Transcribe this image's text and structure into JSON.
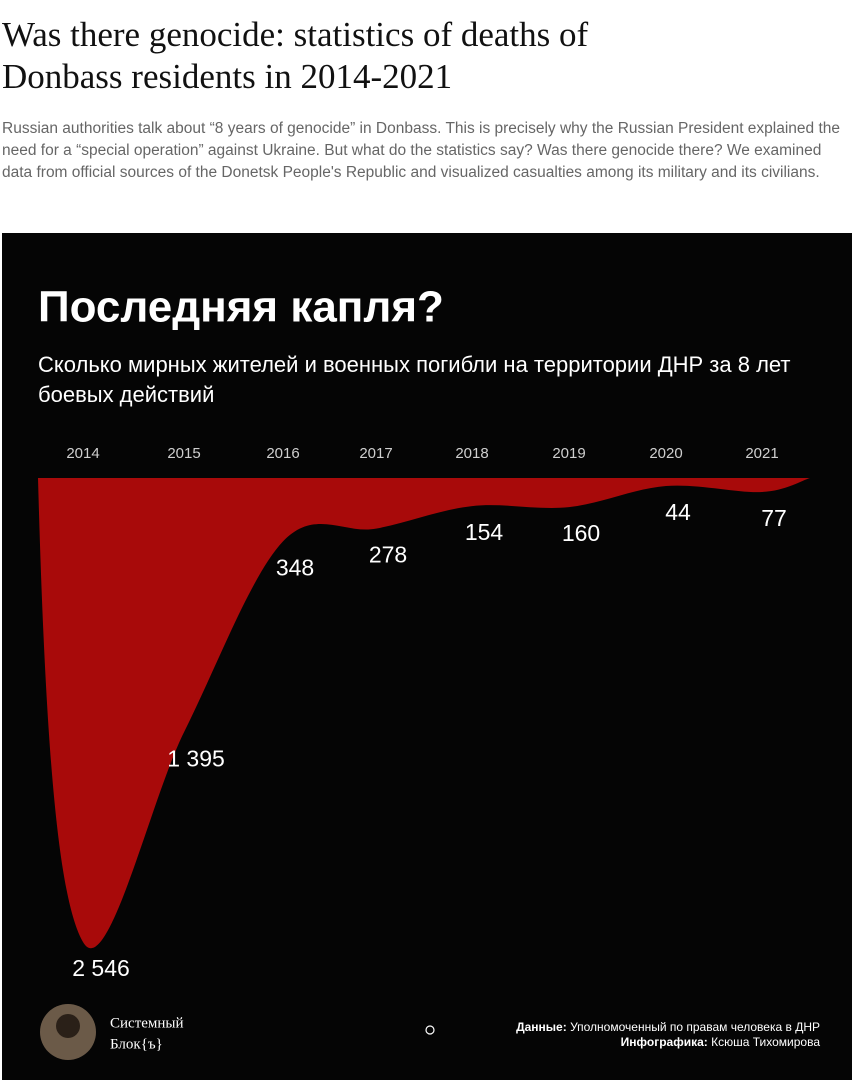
{
  "article": {
    "title": "Was there genocide: statistics of deaths of Donbass residents in 2014-2021",
    "lead": "Russian authorities talk about “8 years of genocide” in Donbass. This is precisely why the Russian President explained the need for a “special operation” against Ukraine. But what do the statistics say? Was there genocide there? We examined data from official sources of the Donetsk People's Republic and visualized casualties among its military and its civilians."
  },
  "chart_data": {
    "type": "area",
    "title": "Последняя капля?",
    "subtitle": "Сколько мирных жителей и военных погибли на территории ДНР за 8 лет боевых действий",
    "categories": [
      "2014",
      "2015",
      "2016",
      "2017",
      "2018",
      "2019",
      "2020",
      "2021"
    ],
    "values": [
      2546,
      1395,
      348,
      278,
      154,
      160,
      44,
      77
    ],
    "value_labels": [
      "2 546",
      "1 395",
      "348",
      "278",
      "154",
      "160",
      "44",
      "77"
    ],
    "color": "#a80a0a",
    "brand": [
      "Системный",
      "Блок{ъ}"
    ],
    "source_label": "Данные:",
    "source": "Уполномоченный по правам человека в ДНР",
    "credit_label": "Инфографика:",
    "credit": "Ксюша Тихомирова"
  }
}
